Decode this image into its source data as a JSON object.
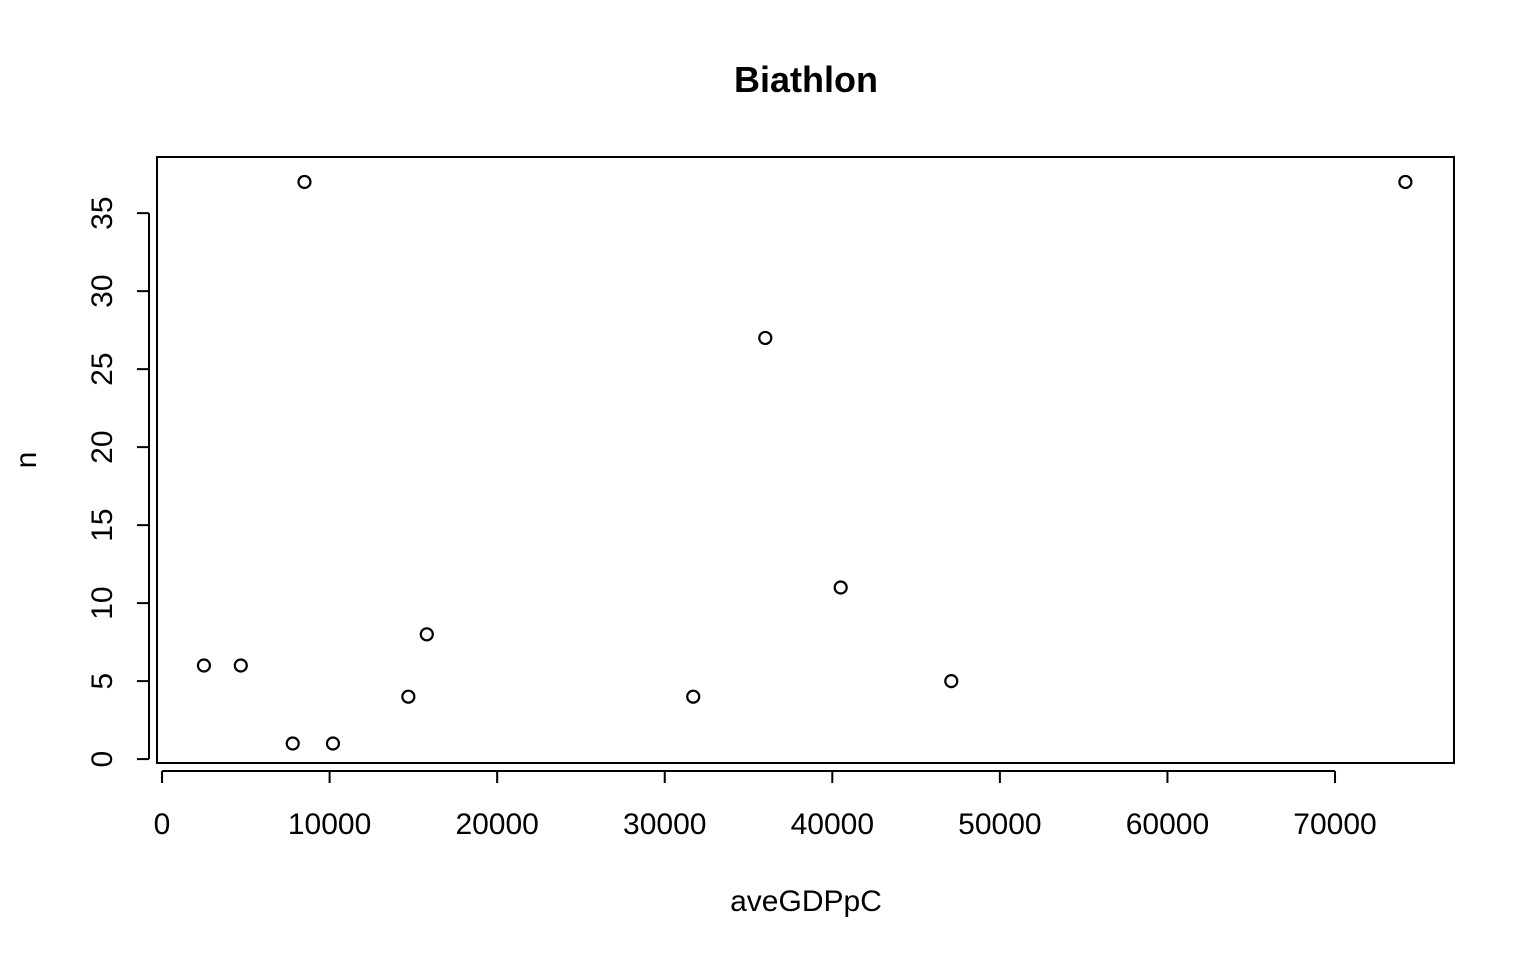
{
  "chart_data": {
    "type": "scatter",
    "title": "Biathlon",
    "xlabel": "aveGDPpC",
    "ylabel": "n",
    "xlim": [
      -300,
      77100
    ],
    "ylim": [
      -0.25,
      38.6
    ],
    "x_ticks": [
      0,
      10000,
      20000,
      30000,
      40000,
      50000,
      60000,
      70000
    ],
    "y_ticks": [
      0,
      5,
      10,
      15,
      20,
      25,
      30,
      35
    ],
    "grid": false,
    "legend": "none",
    "marker": "open-circle",
    "points": [
      {
        "x": 2500,
        "y": 6
      },
      {
        "x": 4700,
        "y": 6
      },
      {
        "x": 7800,
        "y": 1
      },
      {
        "x": 8500,
        "y": 37
      },
      {
        "x": 10200,
        "y": 1
      },
      {
        "x": 14700,
        "y": 4
      },
      {
        "x": 15800,
        "y": 8
      },
      {
        "x": 31700,
        "y": 4
      },
      {
        "x": 36000,
        "y": 27
      },
      {
        "x": 40500,
        "y": 11
      },
      {
        "x": 47100,
        "y": 5
      },
      {
        "x": 74200,
        "y": 37
      }
    ]
  }
}
